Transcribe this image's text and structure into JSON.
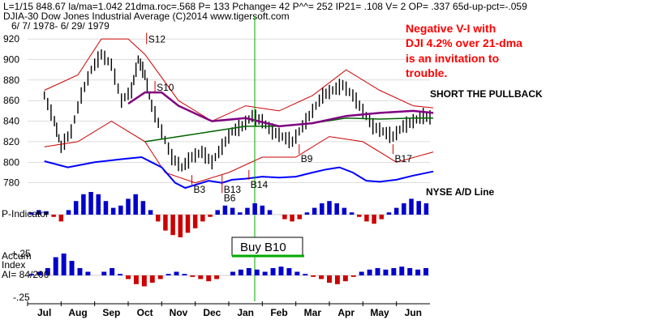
{
  "header": {
    "line1": "L=1/15   848.67  la/ma=1.042  21dma.roc=.568  P=   133  Pchange=   42  P^^= 252  IP21= .108  V= 2  OP=  .337  65d-up-pct=-.059",
    "line2": "DJIA-30   Dow Jones Industrial Average   (C)2014  www.tigersoft.com",
    "line3": "6/ 7/ 1978-  6/ 29/ 1979"
  },
  "annotation": {
    "lines": [
      "Negative V-I with",
      "DJI 4.2% over 21-dma",
      "is an invitation to",
      "trouble."
    ]
  },
  "labels": {
    "short_pullback": "SHORT THE PULLBACK",
    "nyse_ad": "NYSE A/D Line",
    "p_indicator": "P-Indicator",
    "accum": [
      "Accum",
      "Index",
      "AI= 84/200"
    ],
    "buy_box": "Buy B10"
  },
  "colors": {
    "price_bar": "#000000",
    "upper_band": "#cc0000",
    "lower_band": "#cc0000",
    "ma_long": "#800080",
    "ma_mid": "#006400",
    "ad_line": "#0000ff",
    "pos_hist": "#0000cc",
    "neg_hist": "#cc0000",
    "vline": "#00aa00",
    "annotation": "#ff0000"
  },
  "chart_data": {
    "type": "line",
    "title": "DJIA-30   Dow Jones Industrial Average",
    "x_months": [
      "Jul",
      "Aug",
      "Sep",
      "Oct",
      "Nov",
      "Dec",
      "Jan",
      "Feb",
      "Mar",
      "Apr",
      "May",
      "Jun"
    ],
    "price_axis": {
      "ticks": [
        920,
        900,
        880,
        860,
        840,
        820,
        800,
        780
      ],
      "ylim": [
        775,
        928
      ]
    },
    "accum_axis": {
      "ticks": [
        "+.25",
        "-.25"
      ]
    },
    "price_close": [
      {
        "month": 0.0,
        "value": 865
      },
      {
        "month": 0.3,
        "value": 840
      },
      {
        "month": 0.5,
        "value": 815
      },
      {
        "month": 0.8,
        "value": 830
      },
      {
        "month": 1.1,
        "value": 865
      },
      {
        "month": 1.4,
        "value": 890
      },
      {
        "month": 1.7,
        "value": 905
      },
      {
        "month": 2.0,
        "value": 895
      },
      {
        "month": 2.3,
        "value": 860
      },
      {
        "month": 2.6,
        "value": 870
      },
      {
        "month": 2.8,
        "value": 900
      },
      {
        "month": 3.0,
        "value": 885
      },
      {
        "month": 3.2,
        "value": 855
      },
      {
        "month": 3.5,
        "value": 830
      },
      {
        "month": 3.8,
        "value": 805
      },
      {
        "month": 4.1,
        "value": 795
      },
      {
        "month": 4.4,
        "value": 805
      },
      {
        "month": 4.7,
        "value": 810
      },
      {
        "month": 5.0,
        "value": 800
      },
      {
        "month": 5.3,
        "value": 815
      },
      {
        "month": 5.6,
        "value": 830
      },
      {
        "month": 5.9,
        "value": 835
      },
      {
        "month": 6.2,
        "value": 845
      },
      {
        "month": 6.5,
        "value": 840
      },
      {
        "month": 6.8,
        "value": 830
      },
      {
        "month": 7.1,
        "value": 825
      },
      {
        "month": 7.4,
        "value": 820
      },
      {
        "month": 7.7,
        "value": 835
      },
      {
        "month": 8.0,
        "value": 850
      },
      {
        "month": 8.3,
        "value": 865
      },
      {
        "month": 8.6,
        "value": 870
      },
      {
        "month": 8.9,
        "value": 875
      },
      {
        "month": 9.2,
        "value": 865
      },
      {
        "month": 9.5,
        "value": 850
      },
      {
        "month": 9.8,
        "value": 835
      },
      {
        "month": 10.1,
        "value": 830
      },
      {
        "month": 10.4,
        "value": 825
      },
      {
        "month": 10.7,
        "value": 835
      },
      {
        "month": 11.0,
        "value": 840
      },
      {
        "month": 11.3,
        "value": 845
      },
      {
        "month": 11.6,
        "value": 843
      }
    ],
    "upper_band": [
      {
        "month": 0.0,
        "value": 870
      },
      {
        "month": 1.0,
        "value": 885
      },
      {
        "month": 1.7,
        "value": 920
      },
      {
        "month": 2.5,
        "value": 920
      },
      {
        "month": 3.0,
        "value": 905
      },
      {
        "month": 4.0,
        "value": 860
      },
      {
        "month": 5.0,
        "value": 840
      },
      {
        "month": 6.0,
        "value": 855
      },
      {
        "month": 7.0,
        "value": 850
      },
      {
        "month": 8.0,
        "value": 865
      },
      {
        "month": 9.0,
        "value": 890
      },
      {
        "month": 10.0,
        "value": 870
      },
      {
        "month": 11.0,
        "value": 855
      },
      {
        "month": 11.6,
        "value": 853
      }
    ],
    "lower_band": [
      {
        "month": 0.0,
        "value": 815
      },
      {
        "month": 1.0,
        "value": 820
      },
      {
        "month": 2.0,
        "value": 840
      },
      {
        "month": 3.0,
        "value": 820
      },
      {
        "month": 3.6,
        "value": 790
      },
      {
        "month": 4.5,
        "value": 780
      },
      {
        "month": 5.5,
        "value": 790
      },
      {
        "month": 6.5,
        "value": 805
      },
      {
        "month": 7.5,
        "value": 805
      },
      {
        "month": 8.5,
        "value": 825
      },
      {
        "month": 9.5,
        "value": 820
      },
      {
        "month": 10.5,
        "value": 800
      },
      {
        "month": 11.6,
        "value": 810
      }
    ],
    "ma_long": [
      {
        "month": 2.5,
        "value": 857
      },
      {
        "month": 3.0,
        "value": 868
      },
      {
        "month": 3.5,
        "value": 868
      },
      {
        "month": 4.0,
        "value": 855
      },
      {
        "month": 5.0,
        "value": 840
      },
      {
        "month": 6.0,
        "value": 843
      },
      {
        "month": 7.0,
        "value": 835
      },
      {
        "month": 8.0,
        "value": 838
      },
      {
        "month": 9.0,
        "value": 845
      },
      {
        "month": 10.0,
        "value": 848
      },
      {
        "month": 11.0,
        "value": 850
      },
      {
        "month": 11.6,
        "value": 848
      }
    ],
    "ma_mid": [
      {
        "month": 3.0,
        "value": 820
      },
      {
        "month": 4.0,
        "value": 825
      },
      {
        "month": 5.0,
        "value": 830
      },
      {
        "month": 6.0,
        "value": 835
      },
      {
        "month": 7.0,
        "value": 835
      },
      {
        "month": 8.0,
        "value": 838
      },
      {
        "month": 9.0,
        "value": 843
      },
      {
        "month": 10.0,
        "value": 842
      },
      {
        "month": 11.0,
        "value": 843
      },
      {
        "month": 11.6,
        "value": 843
      }
    ],
    "ad_line": [
      {
        "month": 0.0,
        "value": 801
      },
      {
        "month": 0.7,
        "value": 795
      },
      {
        "month": 1.5,
        "value": 800
      },
      {
        "month": 2.3,
        "value": 803
      },
      {
        "month": 2.9,
        "value": 805
      },
      {
        "month": 3.2,
        "value": 800
      },
      {
        "month": 3.5,
        "value": 795
      },
      {
        "month": 3.9,
        "value": 780
      },
      {
        "month": 4.2,
        "value": 775
      },
      {
        "month": 4.5,
        "value": 778
      },
      {
        "month": 4.9,
        "value": 782
      },
      {
        "month": 5.3,
        "value": 780
      },
      {
        "month": 5.6,
        "value": 783
      },
      {
        "month": 6.0,
        "value": 784
      },
      {
        "month": 6.5,
        "value": 786
      },
      {
        "month": 7.0,
        "value": 785
      },
      {
        "month": 7.5,
        "value": 786
      },
      {
        "month": 8.0,
        "value": 790
      },
      {
        "month": 8.4,
        "value": 793
      },
      {
        "month": 8.8,
        "value": 795
      },
      {
        "month": 9.2,
        "value": 790
      },
      {
        "month": 9.6,
        "value": 782
      },
      {
        "month": 10.0,
        "value": 781
      },
      {
        "month": 10.5,
        "value": 783
      },
      {
        "month": 11.0,
        "value": 787
      },
      {
        "month": 11.6,
        "value": 791
      }
    ],
    "p_indicator": [
      0.1,
      0.2,
      0.15,
      -0.1,
      -0.3,
      0.2,
      0.6,
      0.9,
      1.0,
      0.9,
      0.6,
      0.3,
      0.4,
      0.7,
      0.9,
      0.6,
      0.2,
      -0.3,
      -0.7,
      -0.9,
      -1.0,
      -0.8,
      -0.6,
      -0.3,
      -0.1,
      0.2,
      0.4,
      0.3,
      0.1,
      0.3,
      0.5,
      0.4,
      0.2,
      0.0,
      -0.2,
      -0.3,
      -0.2,
      0.1,
      0.3,
      0.5,
      0.6,
      0.5,
      0.3,
      0.1,
      -0.1,
      -0.3,
      -0.4,
      -0.2,
      0.1,
      0.3,
      0.5,
      0.7,
      0.6,
      0.5
    ],
    "accum_index": [
      0.02,
      0.05,
      0.1,
      0.25,
      0.3,
      0.2,
      0.1,
      0.05,
      0.0,
      0.05,
      0.1,
      0.02,
      -0.05,
      -0.12,
      -0.15,
      -0.1,
      -0.05,
      0.02,
      0.05,
      0.02,
      -0.02,
      -0.05,
      -0.08,
      -0.05,
      0.0,
      0.05,
      0.08,
      0.1,
      0.08,
      0.05,
      0.1,
      0.12,
      0.1,
      0.05,
      0.02,
      -0.02,
      -0.05,
      -0.1,
      -0.12,
      -0.08,
      -0.02,
      0.05,
      0.08,
      0.1,
      0.08,
      0.1,
      0.12,
      0.1,
      0.08,
      0.1
    ],
    "signals": [
      {
        "label": "S12",
        "month": 3.05,
        "value": 915,
        "kind": "sell"
      },
      {
        "label": "S10",
        "month": 3.3,
        "value": 868,
        "kind": "sell"
      },
      {
        "label": "B9",
        "month": 7.6,
        "value": 808,
        "kind": "buy"
      },
      {
        "label": "B17",
        "month": 10.4,
        "value": 808,
        "kind": "buy"
      },
      {
        "label": "B3",
        "month": 4.4,
        "value": 778,
        "kind": "buy"
      },
      {
        "label": "B13",
        "month": 5.3,
        "value": 778,
        "kind": "buy"
      },
      {
        "label": "B6",
        "month": 5.3,
        "value": 770,
        "kind": "buy"
      },
      {
        "label": "B14",
        "month": 6.1,
        "value": 783,
        "kind": "buy"
      }
    ]
  }
}
